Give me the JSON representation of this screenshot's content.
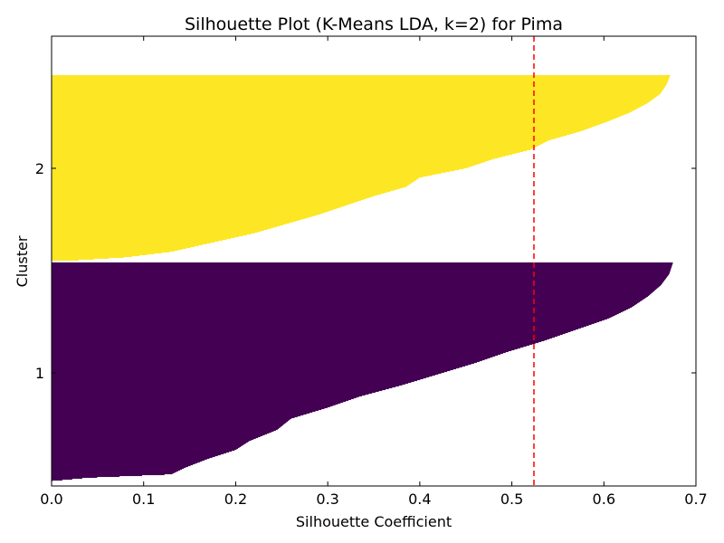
{
  "chart_data": {
    "type": "bar",
    "orientation": "horizontal",
    "title": "Silhouette Plot (K-Means LDA, k=2) for Pima",
    "xlabel": "Silhouette Coefficient",
    "ylabel": "Cluster",
    "xlim": [
      0.0,
      0.7
    ],
    "xticks": [
      "0.0",
      "0.1",
      "0.2",
      "0.3",
      "0.4",
      "0.5",
      "0.6",
      "0.7"
    ],
    "yticks": [
      "1",
      "2"
    ],
    "grid": false,
    "mean_silhouette": 0.524,
    "mean_line_color": "#ff0000",
    "series": [
      {
        "label": "1",
        "color": "#440154",
        "silhouette_profile": [
          [
            0.0,
            0.0
          ],
          [
            0.02,
            0.0
          ],
          [
            0.035,
            0.04
          ],
          [
            0.05,
            0.13
          ],
          [
            0.08,
            0.145
          ],
          [
            0.12,
            0.17
          ],
          [
            0.16,
            0.2
          ],
          [
            0.2,
            0.215
          ],
          [
            0.25,
            0.245
          ],
          [
            0.3,
            0.26
          ],
          [
            0.35,
            0.3
          ],
          [
            0.4,
            0.335
          ],
          [
            0.45,
            0.38
          ],
          [
            0.5,
            0.42
          ],
          [
            0.55,
            0.46
          ],
          [
            0.6,
            0.495
          ],
          [
            0.65,
            0.535
          ],
          [
            0.7,
            0.57
          ],
          [
            0.75,
            0.605
          ],
          [
            0.8,
            0.63
          ],
          [
            0.85,
            0.648
          ],
          [
            0.9,
            0.662
          ],
          [
            0.95,
            0.671
          ],
          [
            1.0,
            0.675
          ]
        ]
      },
      {
        "label": "2",
        "color": "#fde725",
        "silhouette_profile": [
          [
            0.0,
            0.0
          ],
          [
            0.005,
            0.03
          ],
          [
            0.02,
            0.08
          ],
          [
            0.05,
            0.13
          ],
          [
            0.1,
            0.175
          ],
          [
            0.15,
            0.22
          ],
          [
            0.2,
            0.255
          ],
          [
            0.25,
            0.29
          ],
          [
            0.3,
            0.32
          ],
          [
            0.35,
            0.35
          ],
          [
            0.4,
            0.385
          ],
          [
            0.45,
            0.4
          ],
          [
            0.5,
            0.45
          ],
          [
            0.55,
            0.48
          ],
          [
            0.6,
            0.52
          ],
          [
            0.65,
            0.54
          ],
          [
            0.7,
            0.575
          ],
          [
            0.75,
            0.603
          ],
          [
            0.8,
            0.628
          ],
          [
            0.85,
            0.647
          ],
          [
            0.9,
            0.661
          ],
          [
            0.95,
            0.668
          ],
          [
            1.0,
            0.672
          ]
        ]
      }
    ]
  }
}
